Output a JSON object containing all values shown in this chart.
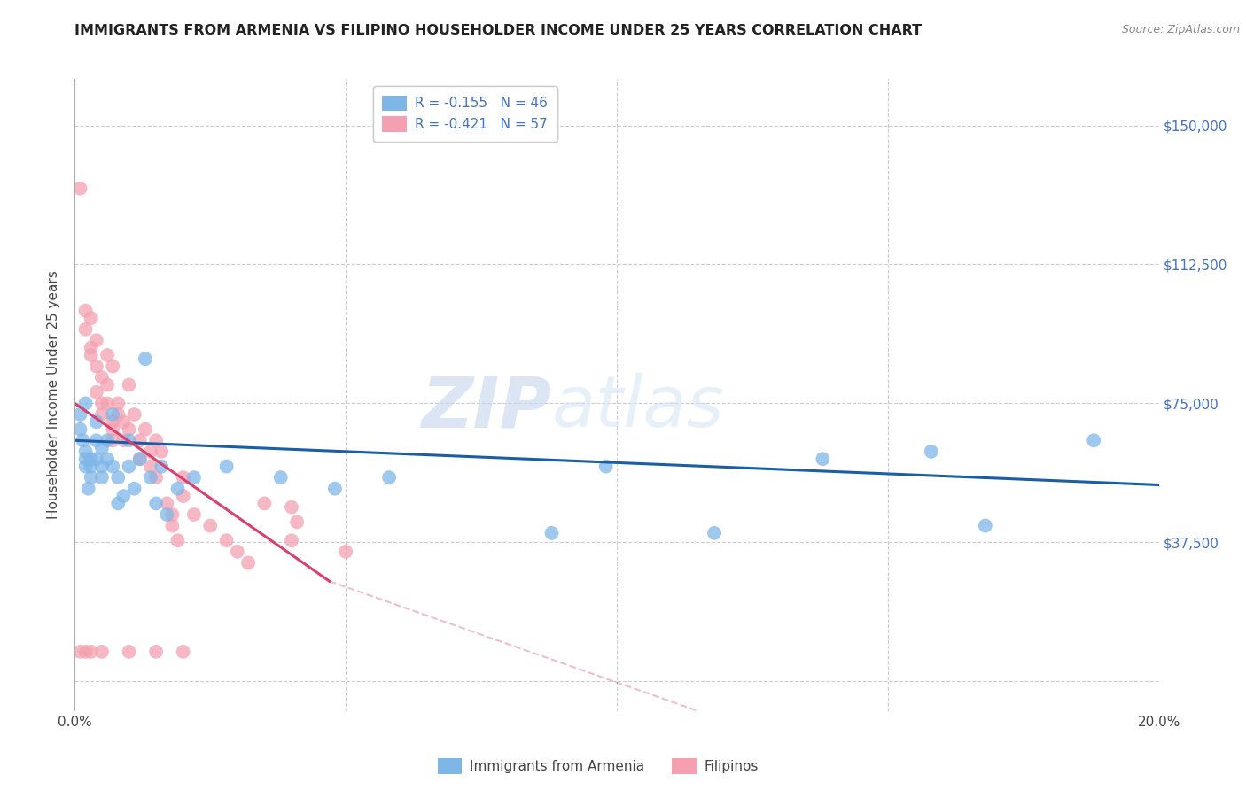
{
  "title": "IMMIGRANTS FROM ARMENIA VS FILIPINO HOUSEHOLDER INCOME UNDER 25 YEARS CORRELATION CHART",
  "source": "Source: ZipAtlas.com",
  "ylabel": "Householder Income Under 25 years",
  "xlim": [
    0.0,
    0.2
  ],
  "ylim": [
    -8000,
    162500
  ],
  "yticks": [
    0,
    37500,
    75000,
    112500,
    150000
  ],
  "ytick_labels": [
    "",
    "$37,500",
    "$75,000",
    "$112,500",
    "$150,000"
  ],
  "xtick_left_label": "0.0%",
  "xtick_right_label": "20.0%",
  "legend_armenian": "R = -0.155   N = 46",
  "legend_filipino": "R = -0.421   N = 57",
  "legend_label_armenian": "Immigrants from Armenia",
  "legend_label_filipino": "Filipinos",
  "color_armenian": "#7EB6E8",
  "color_filipino": "#F4A0B0",
  "line_color_armenian": "#1A5EA8",
  "line_color_filipino": "#D94070",
  "background_color": "#FFFFFF",
  "watermark_zip": "ZIP",
  "watermark_atlas": "atlas",
  "armenian_points": [
    [
      0.001,
      72000
    ],
    [
      0.001,
      68000
    ],
    [
      0.0015,
      65000
    ],
    [
      0.002,
      62000
    ],
    [
      0.002,
      60000
    ],
    [
      0.002,
      58000
    ],
    [
      0.002,
      75000
    ],
    [
      0.003,
      55000
    ],
    [
      0.003,
      60000
    ],
    [
      0.003,
      58000
    ],
    [
      0.0025,
      52000
    ],
    [
      0.004,
      70000
    ],
    [
      0.004,
      65000
    ],
    [
      0.004,
      60000
    ],
    [
      0.005,
      55000
    ],
    [
      0.005,
      58000
    ],
    [
      0.005,
      63000
    ],
    [
      0.006,
      65000
    ],
    [
      0.006,
      60000
    ],
    [
      0.007,
      72000
    ],
    [
      0.007,
      58000
    ],
    [
      0.008,
      55000
    ],
    [
      0.008,
      48000
    ],
    [
      0.009,
      50000
    ],
    [
      0.01,
      65000
    ],
    [
      0.01,
      58000
    ],
    [
      0.011,
      52000
    ],
    [
      0.012,
      60000
    ],
    [
      0.013,
      87000
    ],
    [
      0.014,
      55000
    ],
    [
      0.015,
      48000
    ],
    [
      0.016,
      58000
    ],
    [
      0.017,
      45000
    ],
    [
      0.019,
      52000
    ],
    [
      0.022,
      55000
    ],
    [
      0.028,
      58000
    ],
    [
      0.038,
      55000
    ],
    [
      0.048,
      52000
    ],
    [
      0.058,
      55000
    ],
    [
      0.088,
      40000
    ],
    [
      0.098,
      58000
    ],
    [
      0.118,
      40000
    ],
    [
      0.138,
      60000
    ],
    [
      0.158,
      62000
    ],
    [
      0.168,
      42000
    ],
    [
      0.188,
      65000
    ]
  ],
  "filipino_points": [
    [
      0.001,
      133000
    ],
    [
      0.002,
      100000
    ],
    [
      0.002,
      95000
    ],
    [
      0.003,
      98000
    ],
    [
      0.003,
      90000
    ],
    [
      0.003,
      88000
    ],
    [
      0.004,
      92000
    ],
    [
      0.004,
      85000
    ],
    [
      0.004,
      78000
    ],
    [
      0.005,
      82000
    ],
    [
      0.005,
      75000
    ],
    [
      0.005,
      72000
    ],
    [
      0.006,
      88000
    ],
    [
      0.006,
      80000
    ],
    [
      0.006,
      75000
    ],
    [
      0.007,
      85000
    ],
    [
      0.007,
      70000
    ],
    [
      0.007,
      68000
    ],
    [
      0.007,
      65000
    ],
    [
      0.008,
      72000
    ],
    [
      0.008,
      75000
    ],
    [
      0.009,
      70000
    ],
    [
      0.009,
      65000
    ],
    [
      0.01,
      80000
    ],
    [
      0.01,
      68000
    ],
    [
      0.011,
      72000
    ],
    [
      0.012,
      65000
    ],
    [
      0.012,
      60000
    ],
    [
      0.013,
      68000
    ],
    [
      0.014,
      62000
    ],
    [
      0.014,
      58000
    ],
    [
      0.015,
      65000
    ],
    [
      0.015,
      55000
    ],
    [
      0.016,
      62000
    ],
    [
      0.017,
      48000
    ],
    [
      0.018,
      45000
    ],
    [
      0.018,
      42000
    ],
    [
      0.019,
      38000
    ],
    [
      0.02,
      55000
    ],
    [
      0.02,
      50000
    ],
    [
      0.022,
      45000
    ],
    [
      0.025,
      42000
    ],
    [
      0.028,
      38000
    ],
    [
      0.03,
      35000
    ],
    [
      0.032,
      32000
    ],
    [
      0.035,
      48000
    ],
    [
      0.04,
      47000
    ],
    [
      0.04,
      38000
    ],
    [
      0.041,
      43000
    ],
    [
      0.05,
      35000
    ],
    [
      0.001,
      8000
    ],
    [
      0.002,
      8000
    ],
    [
      0.003,
      8000
    ],
    [
      0.005,
      8000
    ],
    [
      0.01,
      8000
    ],
    [
      0.015,
      8000
    ],
    [
      0.02,
      8000
    ]
  ],
  "armenian_line": {
    "x0": 0.0,
    "y0": 65000,
    "x1": 0.2,
    "y1": 53000
  },
  "filipino_line": {
    "x0": 0.0,
    "y0": 75000,
    "x1": 0.047,
    "y1": 27000
  },
  "filipino_line_dash": {
    "x0": 0.047,
    "y0": 27000,
    "x1": 0.115,
    "y1": -8000
  }
}
